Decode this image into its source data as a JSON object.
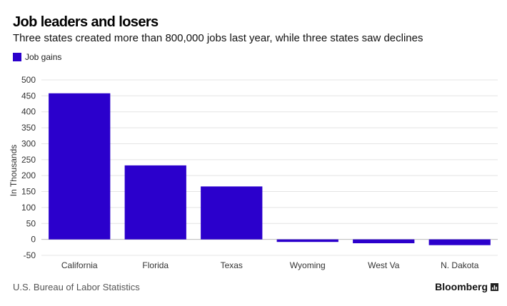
{
  "chart_data": {
    "type": "bar",
    "title": "Job leaders and losers",
    "subtitle": "Three states created more than 800,000 jobs last year, while three states saw declines",
    "ylabel": "In Thousands",
    "xlabel": "",
    "categories": [
      "California",
      "Florida",
      "Texas",
      "Wyoming",
      "West Va",
      "N. Dakota"
    ],
    "series": [
      {
        "name": "Job gains",
        "values": [
          458,
          232,
          166,
          -8,
          -12,
          -18
        ],
        "color": "#2b00cc"
      }
    ],
    "ylim": [
      -50,
      500
    ],
    "yticks": [
      500,
      450,
      400,
      350,
      300,
      250,
      200,
      150,
      100,
      50,
      0,
      -50
    ],
    "grid": true,
    "legend_position": "top-left"
  },
  "footer": {
    "source": "U.S. Bureau of Labor Statistics",
    "brand": "Bloomberg",
    "brand_icon": "bloomberg-chart-icon"
  }
}
